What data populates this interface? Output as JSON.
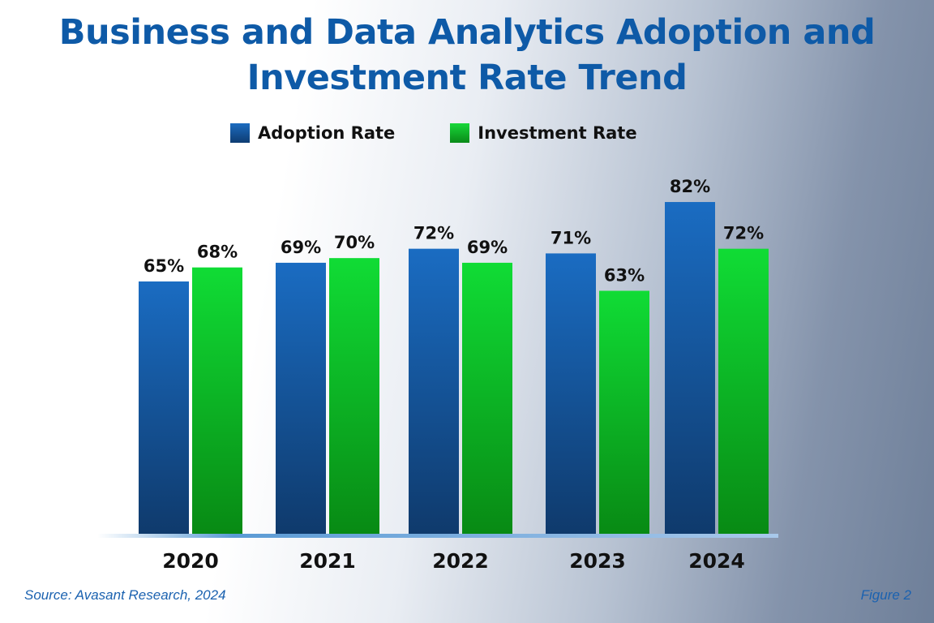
{
  "chart_data": {
    "type": "bar",
    "title": "Business and Data Analytics Adoption and Investment Rate Trend",
    "categories": [
      "2020",
      "2021",
      "2022",
      "2023",
      "2024"
    ],
    "series": [
      {
        "name": "Adoption Rate",
        "values": [
          65,
          69,
          72,
          71,
          82
        ],
        "labels": [
          "65%",
          "69%",
          "72%",
          "71%",
          "82%"
        ],
        "color": "#1565b8"
      },
      {
        "name": "Investment Rate",
        "values": [
          68,
          70,
          69,
          63,
          72
        ],
        "labels": [
          "68%",
          "70%",
          "69%",
          "63%",
          "72%"
        ],
        "color": "#12c12e"
      }
    ],
    "xlabel": "",
    "ylabel": "",
    "grid": false,
    "legend": "top"
  },
  "source": "Source: Avasant Research, 2024",
  "figure": "Figure 2"
}
